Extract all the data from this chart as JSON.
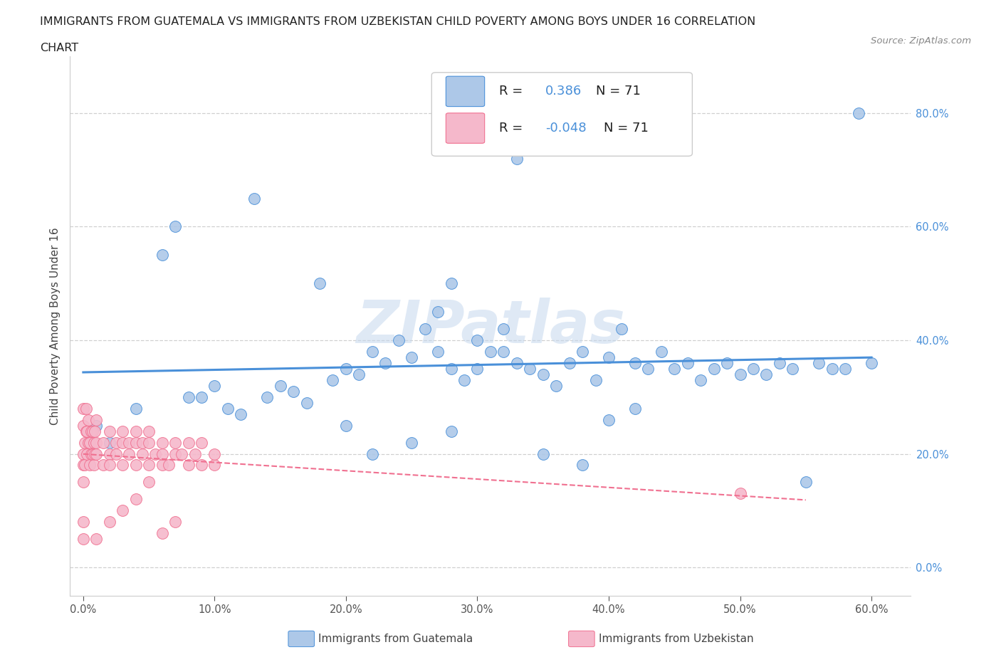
{
  "title_line1": "IMMIGRANTS FROM GUATEMALA VS IMMIGRANTS FROM UZBEKISTAN CHILD POVERTY AMONG BOYS UNDER 16 CORRELATION",
  "title_line2": "CHART",
  "source": "Source: ZipAtlas.com",
  "ylabel": "Child Poverty Among Boys Under 16",
  "guatemala_color": "#adc8e8",
  "uzbekistan_color": "#f5b8cb",
  "guatemala_line_color": "#4a90d9",
  "uzbekistan_line_color": "#f07090",
  "R_guatemala": 0.386,
  "R_uzbekistan": -0.048,
  "N_guatemala": 71,
  "N_uzbekistan": 71,
  "xlim": [
    -0.01,
    0.63
  ],
  "ylim": [
    -0.05,
    0.9
  ],
  "xticks": [
    0.0,
    0.1,
    0.2,
    0.3,
    0.4,
    0.5,
    0.6
  ],
  "yticks_right": [
    0.0,
    0.2,
    0.4,
    0.6,
    0.8
  ],
  "watermark": "ZIPatlas",
  "guatemala_x": [
    0.01,
    0.02,
    0.04,
    0.06,
    0.07,
    0.08,
    0.09,
    0.1,
    0.11,
    0.12,
    0.13,
    0.14,
    0.15,
    0.16,
    0.17,
    0.18,
    0.19,
    0.2,
    0.21,
    0.22,
    0.23,
    0.24,
    0.25,
    0.26,
    0.27,
    0.28,
    0.29,
    0.3,
    0.31,
    0.32,
    0.33,
    0.34,
    0.35,
    0.36,
    0.37,
    0.38,
    0.39,
    0.4,
    0.41,
    0.42,
    0.43,
    0.44,
    0.45,
    0.46,
    0.47,
    0.48,
    0.49,
    0.5,
    0.51,
    0.52,
    0.53,
    0.54,
    0.55,
    0.56,
    0.57,
    0.58,
    0.59,
    0.6,
    0.27,
    0.28,
    0.3,
    0.32,
    0.33,
    0.35,
    0.38,
    0.4,
    0.42,
    0.2,
    0.22,
    0.25,
    0.28
  ],
  "guatemala_y": [
    0.25,
    0.22,
    0.28,
    0.55,
    0.6,
    0.3,
    0.3,
    0.32,
    0.28,
    0.27,
    0.65,
    0.3,
    0.32,
    0.31,
    0.29,
    0.5,
    0.33,
    0.35,
    0.34,
    0.38,
    0.36,
    0.4,
    0.37,
    0.42,
    0.38,
    0.35,
    0.33,
    0.4,
    0.38,
    0.42,
    0.36,
    0.35,
    0.34,
    0.32,
    0.36,
    0.38,
    0.33,
    0.37,
    0.42,
    0.36,
    0.35,
    0.38,
    0.35,
    0.36,
    0.33,
    0.35,
    0.36,
    0.34,
    0.35,
    0.34,
    0.36,
    0.35,
    0.15,
    0.36,
    0.35,
    0.35,
    0.8,
    0.36,
    0.45,
    0.5,
    0.35,
    0.38,
    0.72,
    0.2,
    0.18,
    0.26,
    0.28,
    0.25,
    0.2,
    0.22,
    0.24
  ],
  "uzbekistan_x": [
    0.0,
    0.0,
    0.0,
    0.0,
    0.0,
    0.001,
    0.001,
    0.002,
    0.002,
    0.003,
    0.003,
    0.004,
    0.004,
    0.005,
    0.005,
    0.006,
    0.006,
    0.007,
    0.007,
    0.008,
    0.008,
    0.009,
    0.009,
    0.01,
    0.01,
    0.01,
    0.015,
    0.015,
    0.02,
    0.02,
    0.02,
    0.025,
    0.025,
    0.03,
    0.03,
    0.03,
    0.035,
    0.035,
    0.04,
    0.04,
    0.04,
    0.045,
    0.045,
    0.05,
    0.05,
    0.05,
    0.055,
    0.06,
    0.06,
    0.06,
    0.065,
    0.07,
    0.07,
    0.075,
    0.08,
    0.08,
    0.085,
    0.09,
    0.09,
    0.1,
    0.1,
    0.5,
    0.01,
    0.02,
    0.03,
    0.04,
    0.05,
    0.06,
    0.07,
    0.0,
    0.0
  ],
  "uzbekistan_y": [
    0.2,
    0.25,
    0.28,
    0.18,
    0.15,
    0.22,
    0.18,
    0.24,
    0.28,
    0.2,
    0.24,
    0.22,
    0.26,
    0.18,
    0.22,
    0.2,
    0.24,
    0.2,
    0.24,
    0.18,
    0.22,
    0.2,
    0.24,
    0.2,
    0.22,
    0.26,
    0.18,
    0.22,
    0.2,
    0.24,
    0.18,
    0.2,
    0.22,
    0.18,
    0.22,
    0.24,
    0.2,
    0.22,
    0.18,
    0.22,
    0.24,
    0.2,
    0.22,
    0.18,
    0.22,
    0.24,
    0.2,
    0.18,
    0.22,
    0.2,
    0.18,
    0.2,
    0.22,
    0.2,
    0.18,
    0.22,
    0.2,
    0.18,
    0.22,
    0.18,
    0.2,
    0.13,
    0.05,
    0.08,
    0.1,
    0.12,
    0.15,
    0.06,
    0.08,
    0.05,
    0.08
  ]
}
